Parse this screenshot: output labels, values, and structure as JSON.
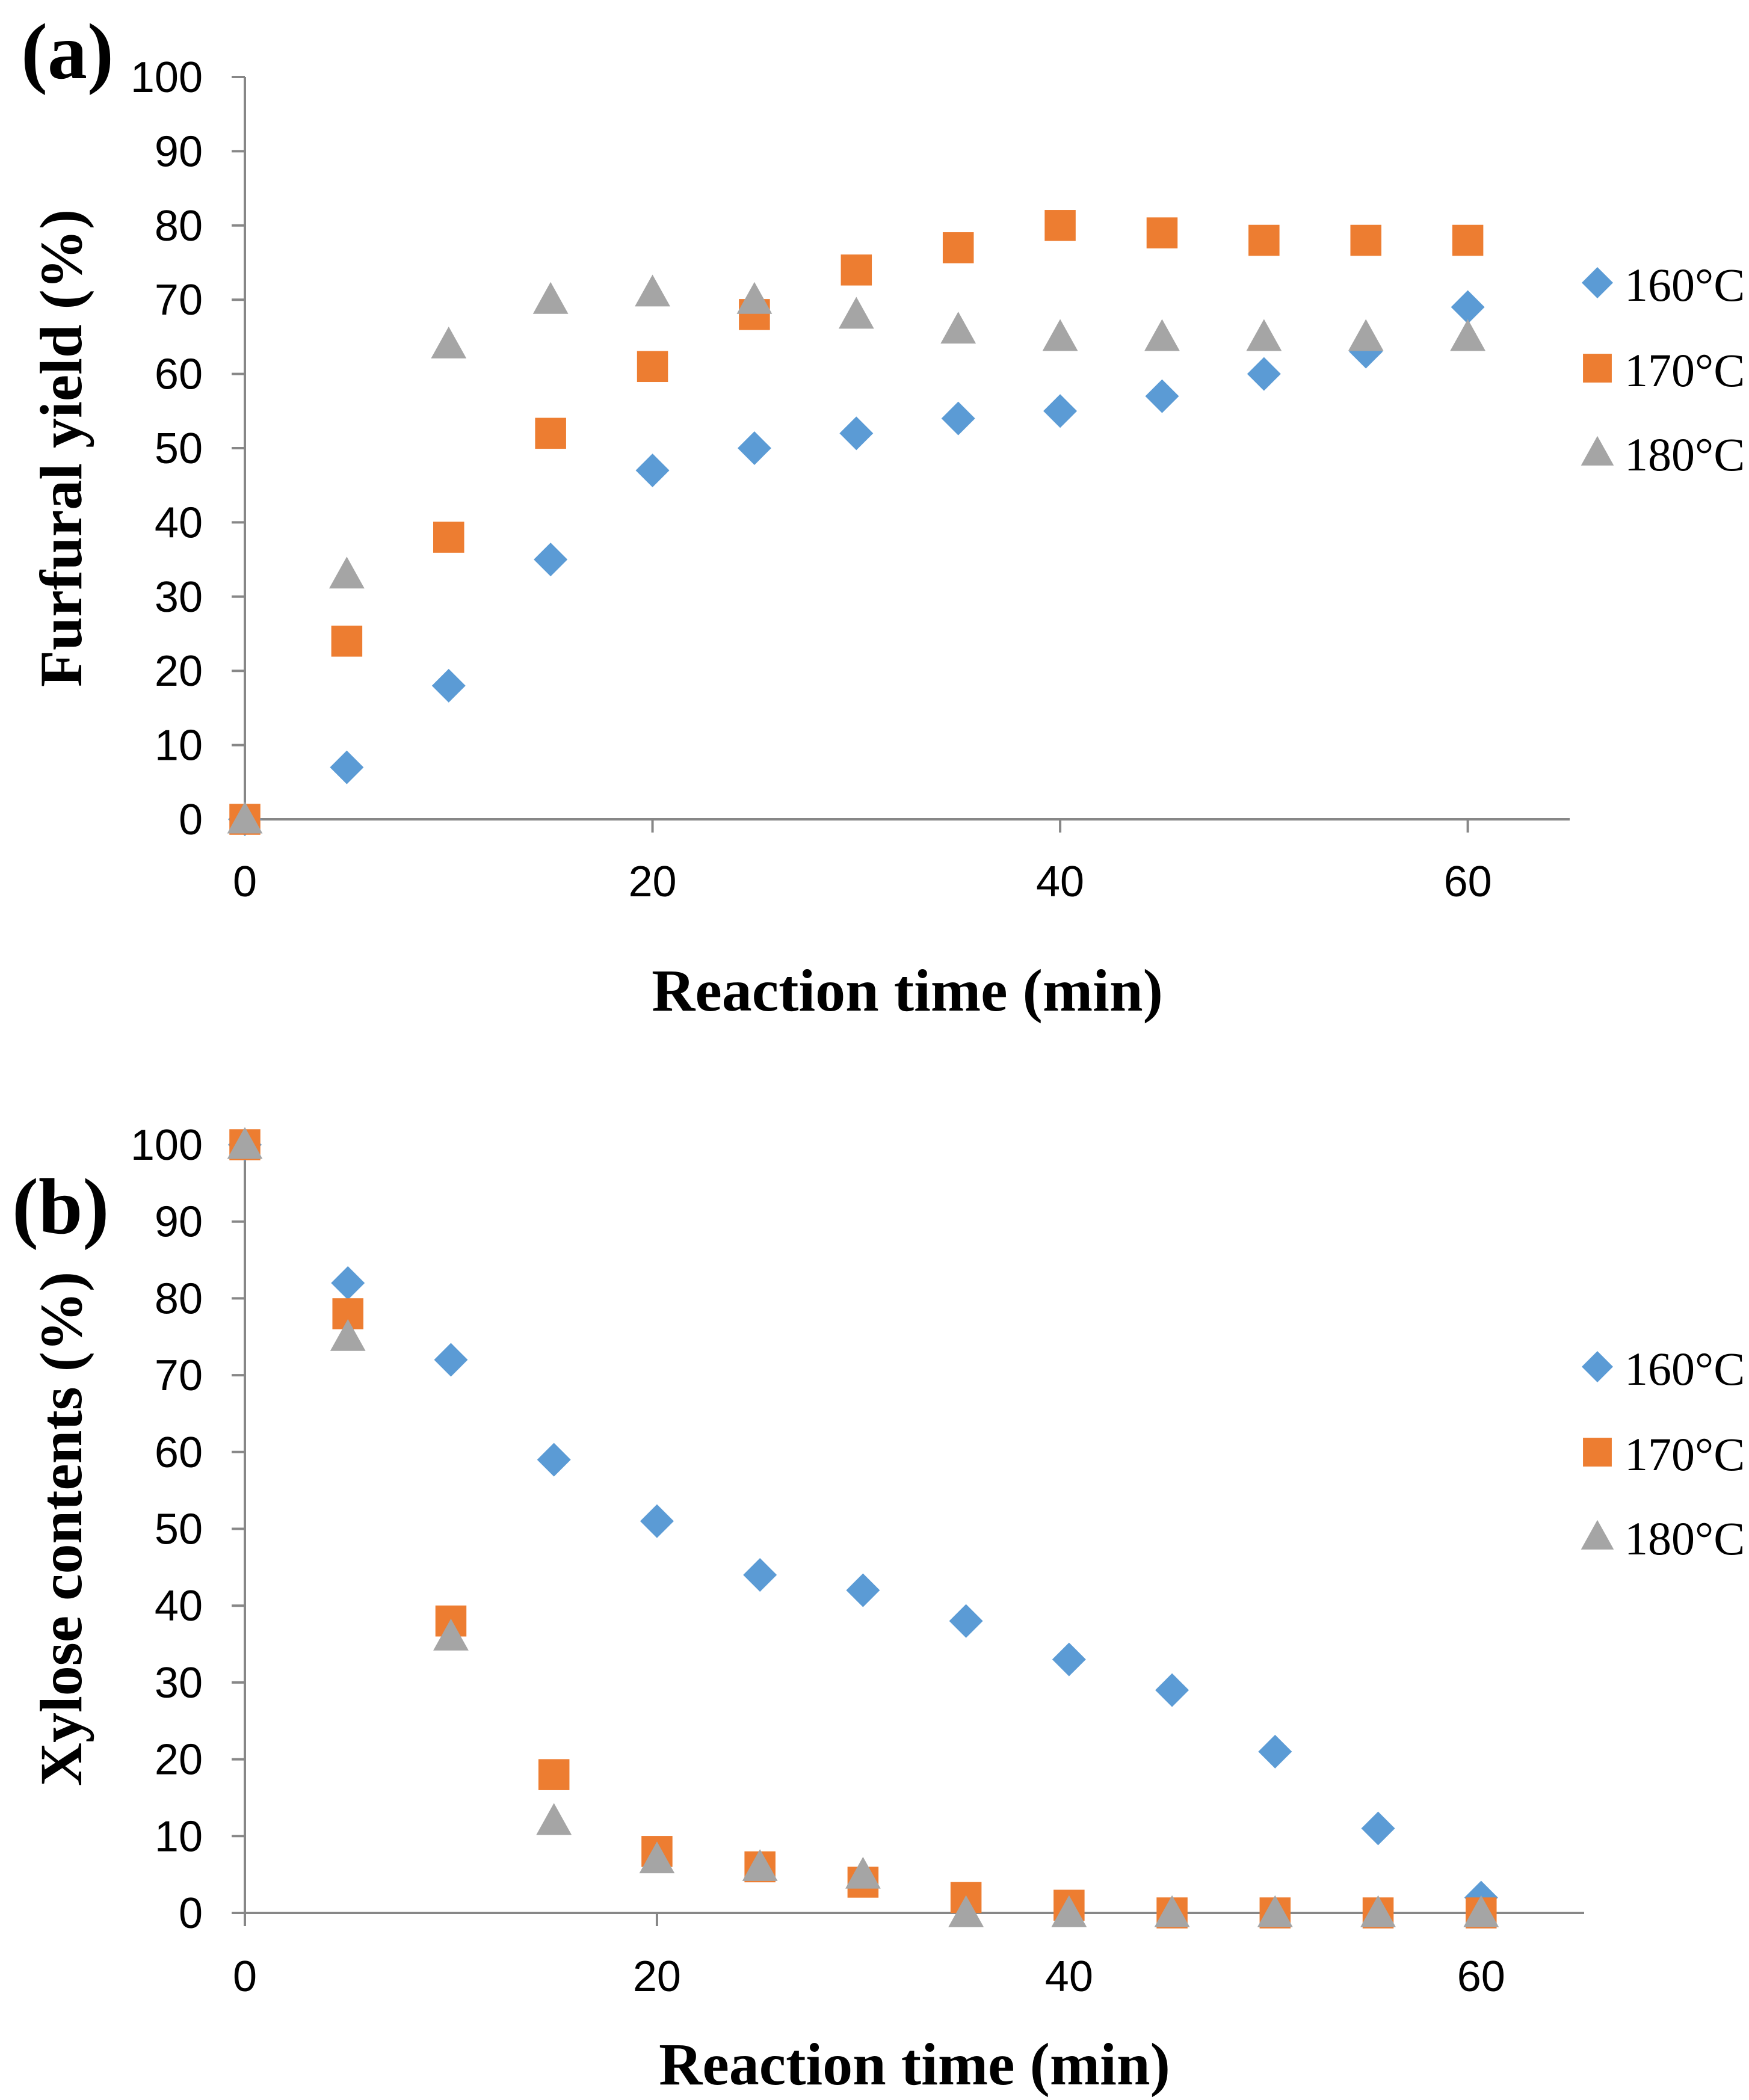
{
  "chart_data": [
    {
      "type": "scatter",
      "panel_label": "(a)",
      "xlabel": "Reaction time (min)",
      "ylabel": "Furfural yield (%)",
      "xlim": [
        0,
        65
      ],
      "ylim": [
        0,
        100
      ],
      "xticks": [
        0,
        20,
        40,
        60
      ],
      "yticks": [
        0,
        10,
        20,
        30,
        40,
        50,
        60,
        70,
        80,
        90,
        100
      ],
      "grid": false,
      "legend_position": "right",
      "series": [
        {
          "name": "160°C",
          "marker": "diamond",
          "color": "#5b9bd5",
          "x": [
            0,
            5,
            10,
            15,
            20,
            25,
            30,
            35,
            40,
            45,
            50,
            55,
            60
          ],
          "y": [
            0,
            7,
            18,
            35,
            47,
            50,
            52,
            54,
            55,
            57,
            60,
            63,
            69
          ]
        },
        {
          "name": "170°C",
          "marker": "square",
          "color": "#ed7d31",
          "x": [
            0,
            5,
            10,
            15,
            20,
            25,
            30,
            35,
            40,
            45,
            50,
            55,
            60
          ],
          "y": [
            0,
            24,
            38,
            52,
            61,
            68,
            74,
            77,
            80,
            79,
            78,
            78,
            78
          ]
        },
        {
          "name": "180°C",
          "marker": "triangle",
          "color": "#a5a5a5",
          "x": [
            0,
            5,
            10,
            15,
            20,
            25,
            30,
            35,
            40,
            45,
            50,
            55,
            60
          ],
          "y": [
            0,
            33,
            64,
            70,
            71,
            70,
            68,
            66,
            65,
            65,
            65,
            65,
            65
          ]
        }
      ]
    },
    {
      "type": "scatter",
      "panel_label": "(b)",
      "xlabel": "Reaction time (min)",
      "ylabel": "Xylose contents (%)",
      "xlim": [
        0,
        65
      ],
      "ylim": [
        0,
        100
      ],
      "xticks": [
        0,
        20,
        40,
        60
      ],
      "yticks": [
        0,
        10,
        20,
        30,
        40,
        50,
        60,
        70,
        80,
        90,
        100
      ],
      "grid": false,
      "legend_position": "right",
      "series": [
        {
          "name": "160°C",
          "marker": "diamond",
          "color": "#5b9bd5",
          "x": [
            0,
            5,
            10,
            15,
            20,
            25,
            30,
            35,
            40,
            45,
            50,
            55,
            60
          ],
          "y": [
            100,
            82,
            72,
            59,
            51,
            44,
            42,
            38,
            33,
            29,
            21,
            11,
            2
          ]
        },
        {
          "name": "170°C",
          "marker": "square",
          "color": "#ed7d31",
          "x": [
            0,
            5,
            10,
            15,
            20,
            25,
            30,
            35,
            40,
            45,
            50,
            55,
            60
          ],
          "y": [
            100,
            78,
            38,
            18,
            8,
            6,
            4,
            2,
            1,
            0,
            0,
            0,
            0
          ]
        },
        {
          "name": "180°C",
          "marker": "triangle",
          "color": "#a5a5a5",
          "x": [
            0,
            5,
            10,
            15,
            20,
            25,
            30,
            35,
            40,
            45,
            50,
            55,
            60
          ],
          "y": [
            100,
            75,
            36,
            12,
            7,
            6,
            5,
            0,
            0,
            0,
            0,
            0,
            0
          ]
        }
      ]
    }
  ]
}
